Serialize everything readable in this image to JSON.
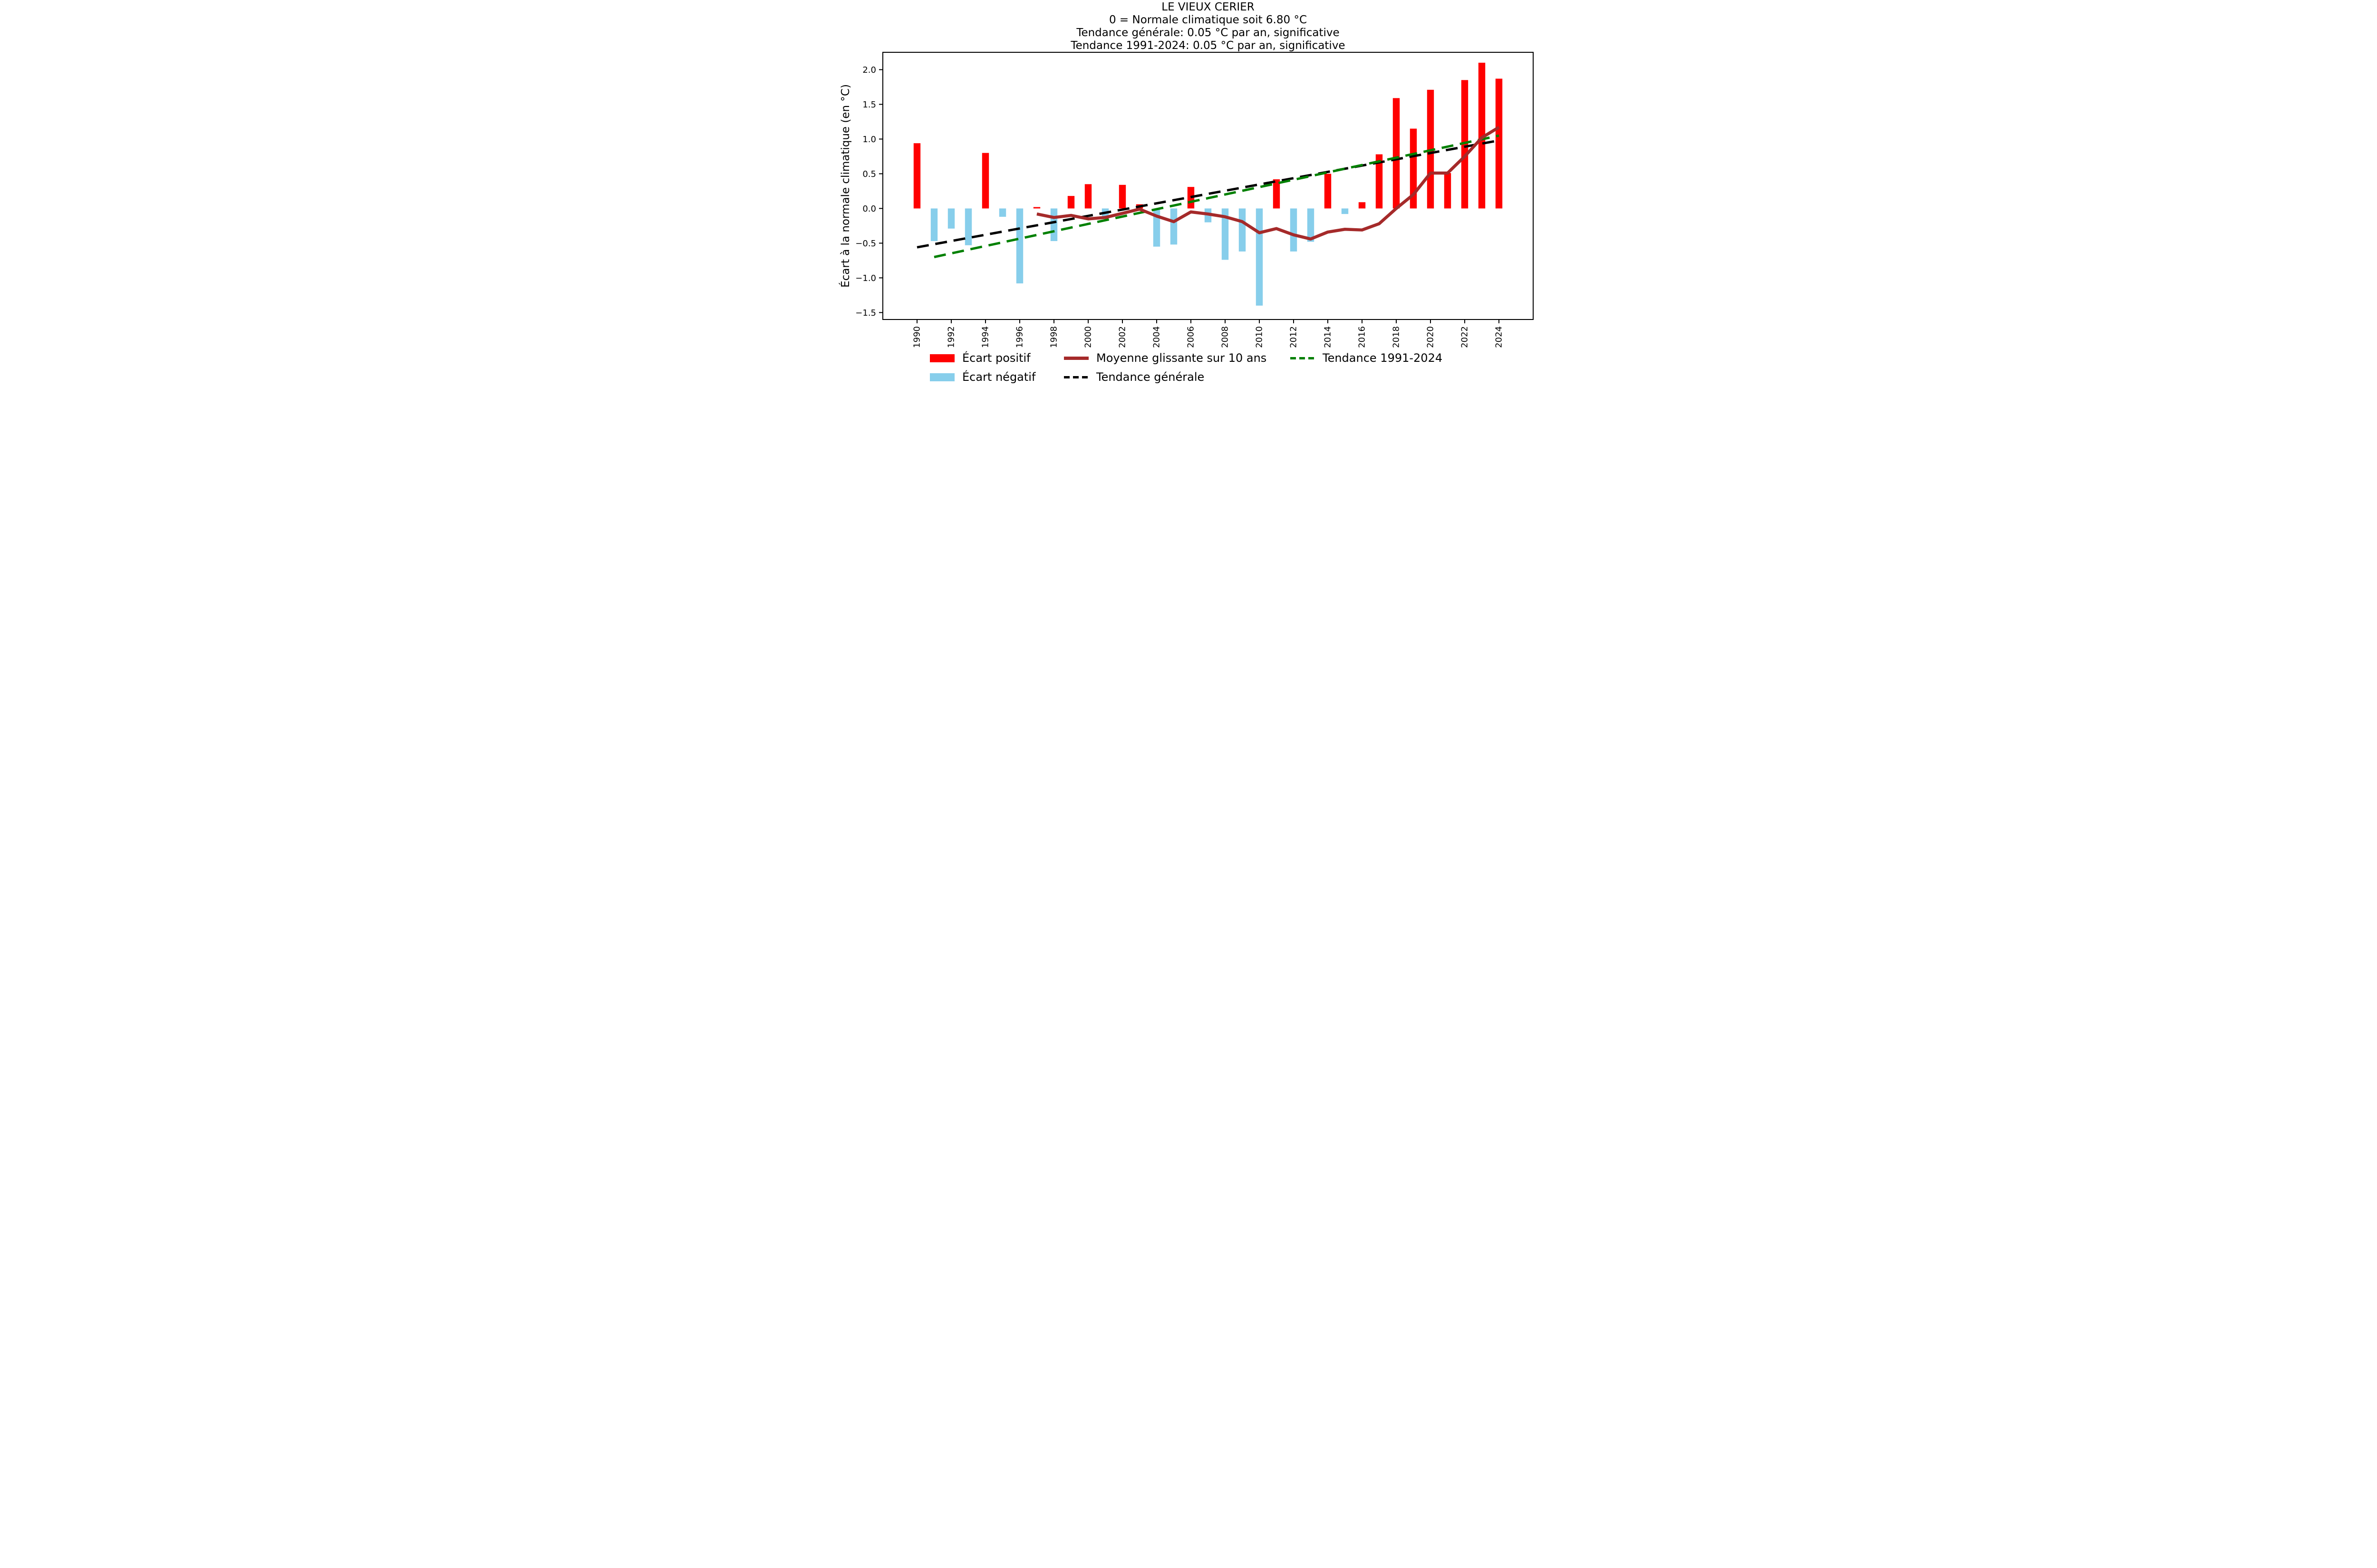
{
  "chart_data": {
    "type": "bar",
    "title_lines": [
      "LE VIEUX CERIER",
      "0 = Normale climatique soit 6.80 °C",
      "Tendance générale: 0.05 °C par an, significative",
      "Tendance 1991-2024: 0.05 °C par an, significative"
    ],
    "xlabel": "",
    "ylabel": "Écart à la normale climatique (en °C)",
    "xlim": [
      1988,
      2026
    ],
    "ylim": [
      -1.6,
      2.25
    ],
    "grid": false,
    "legend_position": "below",
    "xtick_years": [
      1990,
      1992,
      1994,
      1996,
      1998,
      2000,
      2002,
      2004,
      2006,
      2008,
      2010,
      2012,
      2014,
      2016,
      2018,
      2020,
      2022,
      2024
    ],
    "ytick_values": [
      2.0,
      1.5,
      1.0,
      0.5,
      0.0,
      -0.5,
      -1.0,
      -1.5
    ],
    "ytick_labels": [
      "2.0",
      "1.5",
      "1.0",
      "0.5",
      "0.0",
      "−0.5",
      "−1.0",
      "−1.5"
    ],
    "categories": [
      1990,
      1991,
      1992,
      1993,
      1994,
      1995,
      1996,
      1997,
      1998,
      1999,
      2000,
      2001,
      2002,
      2003,
      2004,
      2005,
      2006,
      2007,
      2008,
      2009,
      2010,
      2011,
      2012,
      2013,
      2014,
      2015,
      2016,
      2017,
      2018,
      2019,
      2020,
      2021,
      2022,
      2023,
      2024
    ],
    "values": [
      0.94,
      -0.47,
      -0.29,
      -0.53,
      0.8,
      -0.12,
      -1.08,
      0.02,
      -0.47,
      0.18,
      0.35,
      -0.14,
      0.34,
      0.06,
      -0.55,
      -0.52,
      0.31,
      -0.2,
      -0.74,
      -0.62,
      -1.4,
      0.42,
      -0.62,
      -0.48,
      0.5,
      -0.08,
      0.09,
      0.78,
      1.59,
      1.15,
      1.71,
      0.51,
      1.85,
      2.1,
      1.87
    ],
    "bar_width_years": 0.4,
    "series": [
      {
        "name": "Moyenne glissante sur 10 ans",
        "kind": "line",
        "x": [
          1997,
          1998,
          1999,
          2000,
          2001,
          2002,
          2003,
          2004,
          2005,
          2006,
          2007,
          2008,
          2009,
          2010,
          2011,
          2012,
          2013,
          2014,
          2015,
          2016,
          2017,
          2018,
          2019,
          2020,
          2021,
          2022,
          2023,
          2024
        ],
        "values": [
          -0.08,
          -0.13,
          -0.1,
          -0.15,
          -0.13,
          -0.07,
          -0.01,
          -0.11,
          -0.19,
          -0.05,
          -0.08,
          -0.12,
          -0.19,
          -0.35,
          -0.29,
          -0.38,
          -0.44,
          -0.34,
          -0.3,
          -0.31,
          -0.22,
          0.0,
          0.2,
          0.51,
          0.51,
          0.75,
          1.02,
          1.17
        ]
      },
      {
        "name": "Tendance générale",
        "kind": "dashed-line",
        "x": [
          1990,
          2024
        ],
        "values": [
          -0.56,
          0.98
        ]
      },
      {
        "name": "Tendance 1991-2024",
        "kind": "dashed-line",
        "x": [
          1991,
          2024
        ],
        "values": [
          -0.7,
          1.05
        ]
      }
    ],
    "colors": {
      "positive_bar": "#ff0000",
      "negative_bar": "#87ceeb",
      "moving_average": "#a52a2a",
      "trend_general": "#000000",
      "trend_recent": "#008000",
      "axis": "#000000",
      "background": "#ffffff"
    },
    "legend": {
      "positive": "Écart positif",
      "negative": "Écart négatif",
      "moving_average": "Moyenne glissante sur 10 ans",
      "trend_general": "Tendance générale",
      "trend_recent": "Tendance 1991-2024"
    }
  }
}
